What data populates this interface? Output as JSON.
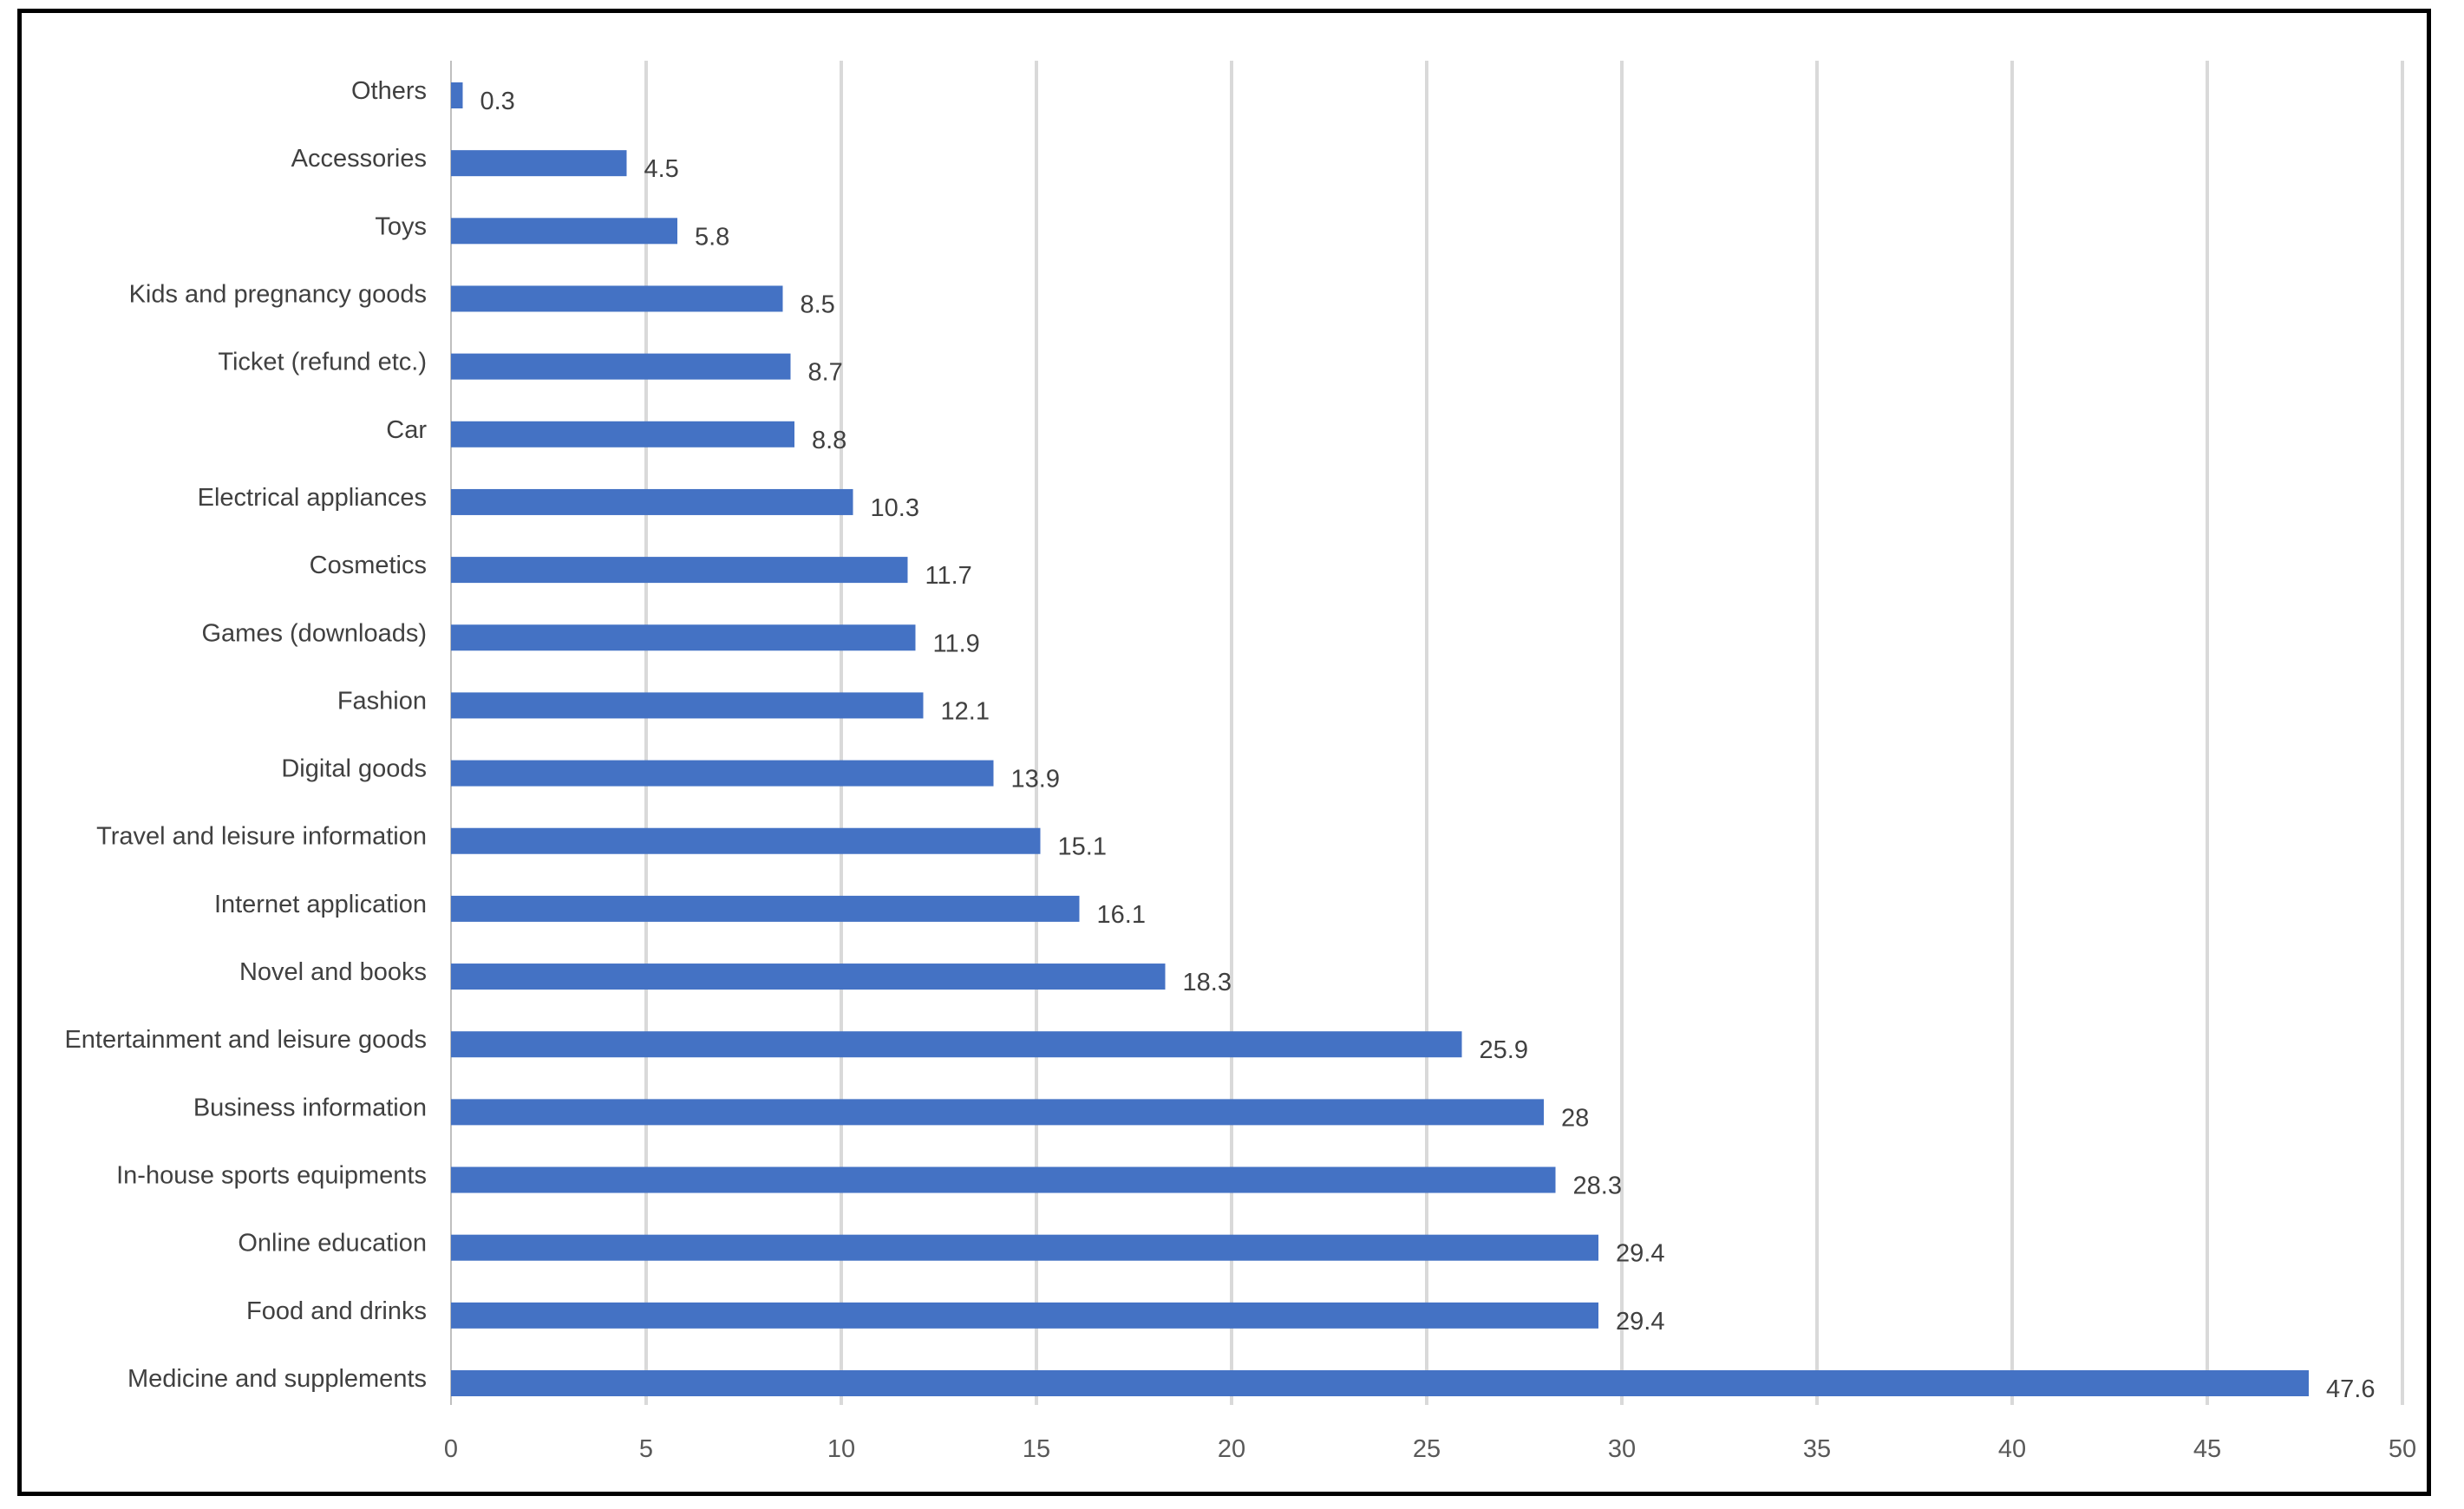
{
  "colors": {
    "bar": "#4472c4",
    "grid": "#d9d9d9",
    "frame": "#000000"
  },
  "chart_data": {
    "type": "bar",
    "orientation": "horizontal",
    "title": "",
    "xlabel": "",
    "ylabel": "",
    "xlim": [
      0,
      50
    ],
    "xticks": [
      0,
      5,
      10,
      15,
      20,
      25,
      30,
      35,
      40,
      45,
      50
    ],
    "grid": "vertical",
    "data_labels": true,
    "categories": [
      "Others",
      "Accessories",
      "Toys",
      "Kids and pregnancy goods",
      "Ticket (refund etc.)",
      "Car",
      "Electrical appliances",
      "Cosmetics",
      "Games (downloads)",
      "Fashion",
      "Digital goods",
      "Travel and leisure information",
      "Internet application",
      "Novel and books",
      "Entertainment and leisure goods",
      "Business information",
      "In-house sports equipments",
      "Online education",
      "Food and drinks",
      "Medicine and supplements"
    ],
    "values": [
      0.3,
      4.5,
      5.8,
      8.5,
      8.7,
      8.8,
      10.3,
      11.7,
      11.9,
      12.1,
      13.9,
      15.1,
      16.1,
      18.3,
      25.9,
      28,
      28.3,
      29.4,
      29.4,
      47.6
    ]
  }
}
